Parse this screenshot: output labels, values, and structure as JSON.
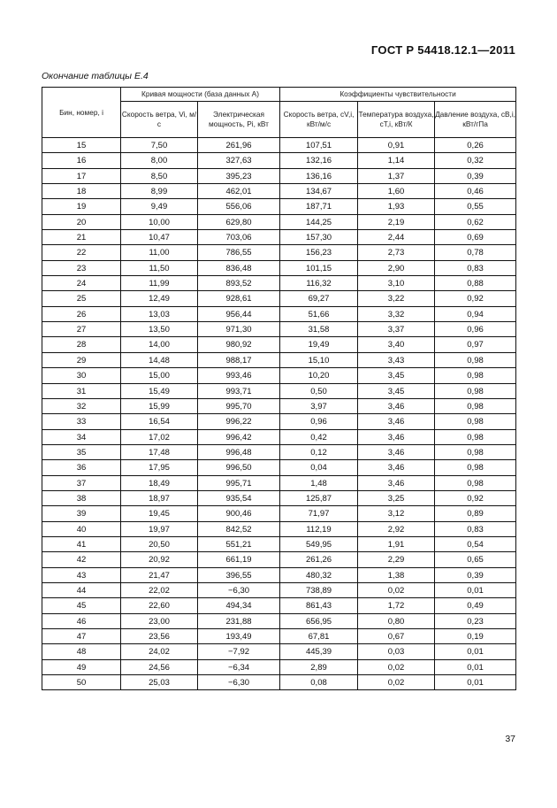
{
  "header": {
    "document_code": "ГОСТ Р 54418.12.1—2011"
  },
  "caption": "Окончание таблицы Е.4",
  "table": {
    "col_bin": "Бин, номер, i",
    "group_power_curve": "Кривая мощности (база данных А)",
    "group_sensitivity": "Коэффициенты чувствительности",
    "col_wind_speed": "Скорость ветра, Vi, м/с",
    "col_power": "Электрическая мощность, Pi, кВт",
    "col_c_wind": "Скорость ветра, cV,i, кВт/м/с",
    "col_c_temp": "Температура воздуха, cT,i, кВт/К",
    "col_c_pressure": "Давление воздуха, cB,i, кВт/гПа",
    "rows": [
      [
        "15",
        "7,50",
        "261,96",
        "107,51",
        "0,91",
        "0,26"
      ],
      [
        "16",
        "8,00",
        "327,63",
        "132,16",
        "1,14",
        "0,32"
      ],
      [
        "17",
        "8,50",
        "395,23",
        "136,16",
        "1,37",
        "0,39"
      ],
      [
        "18",
        "8,99",
        "462,01",
        "134,67",
        "1,60",
        "0,46"
      ],
      [
        "19",
        "9,49",
        "556,06",
        "187,71",
        "1,93",
        "0,55"
      ],
      [
        "20",
        "10,00",
        "629,80",
        "144,25",
        "2,19",
        "0,62"
      ],
      [
        "21",
        "10,47",
        "703,06",
        "157,30",
        "2,44",
        "0,69"
      ],
      [
        "22",
        "11,00",
        "786,55",
        "156,23",
        "2,73",
        "0,78"
      ],
      [
        "23",
        "11,50",
        "836,48",
        "101,15",
        "2,90",
        "0,83"
      ],
      [
        "24",
        "11,99",
        "893,52",
        "116,32",
        "3,10",
        "0,88"
      ],
      [
        "25",
        "12,49",
        "928,61",
        "69,27",
        "3,22",
        "0,92"
      ],
      [
        "26",
        "13,03",
        "956,44",
        "51,66",
        "3,32",
        "0,94"
      ],
      [
        "27",
        "13,50",
        "971,30",
        "31,58",
        "3,37",
        "0,96"
      ],
      [
        "28",
        "14,00",
        "980,92",
        "19,49",
        "3,40",
        "0,97"
      ],
      [
        "29",
        "14,48",
        "988,17",
        "15,10",
        "3,43",
        "0,98"
      ],
      [
        "30",
        "15,00",
        "993,46",
        "10,20",
        "3,45",
        "0,98"
      ],
      [
        "31",
        "15,49",
        "993,71",
        "0,50",
        "3,45",
        "0,98"
      ],
      [
        "32",
        "15,99",
        "995,70",
        "3,97",
        "3,46",
        "0,98"
      ],
      [
        "33",
        "16,54",
        "996,22",
        "0,96",
        "3,46",
        "0,98"
      ],
      [
        "34",
        "17,02",
        "996,42",
        "0,42",
        "3,46",
        "0,98"
      ],
      [
        "35",
        "17,48",
        "996,48",
        "0,12",
        "3,46",
        "0,98"
      ],
      [
        "36",
        "17,95",
        "996,50",
        "0,04",
        "3,46",
        "0,98"
      ],
      [
        "37",
        "18,49",
        "995,71",
        "1,48",
        "3,46",
        "0,98"
      ],
      [
        "38",
        "18,97",
        "935,54",
        "125,87",
        "3,25",
        "0,92"
      ],
      [
        "39",
        "19,45",
        "900,46",
        "71,97",
        "3,12",
        "0,89"
      ],
      [
        "40",
        "19,97",
        "842,52",
        "112,19",
        "2,92",
        "0,83"
      ],
      [
        "41",
        "20,50",
        "551,21",
        "549,95",
        "1,91",
        "0,54"
      ],
      [
        "42",
        "20,92",
        "661,19",
        "261,26",
        "2,29",
        "0,65"
      ],
      [
        "43",
        "21,47",
        "396,55",
        "480,32",
        "1,38",
        "0,39"
      ],
      [
        "44",
        "22,02",
        "−6,30",
        "738,89",
        "0,02",
        "0,01"
      ],
      [
        "45",
        "22,60",
        "494,34",
        "861,43",
        "1,72",
        "0,49"
      ],
      [
        "46",
        "23,00",
        "231,88",
        "656,95",
        "0,80",
        "0,23"
      ],
      [
        "47",
        "23,56",
        "193,49",
        "67,81",
        "0,67",
        "0,19"
      ],
      [
        "48",
        "24,02",
        "−7,92",
        "445,39",
        "0,03",
        "0,01"
      ],
      [
        "49",
        "24,56",
        "−6,34",
        "2,89",
        "0,02",
        "0,01"
      ],
      [
        "50",
        "25,03",
        "−6,30",
        "0,08",
        "0,02",
        "0,01"
      ]
    ]
  },
  "page_number": "37"
}
